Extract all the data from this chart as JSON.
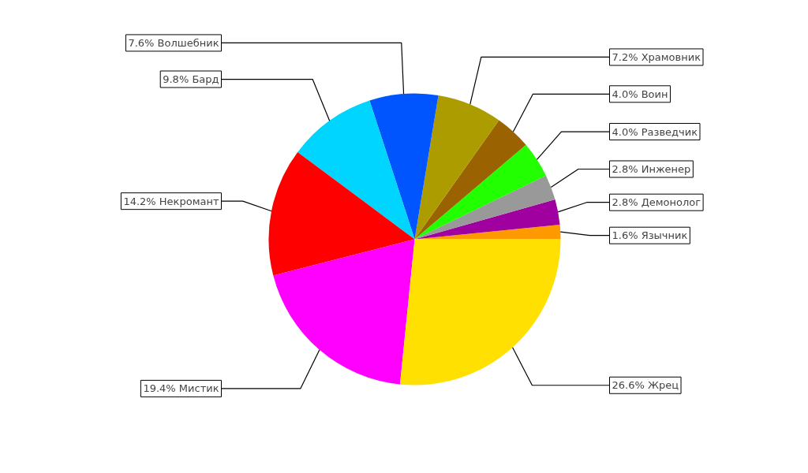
{
  "chart_data": {
    "type": "pie",
    "categories": [
      "Язычник",
      "Демонолог",
      "Инженер",
      "Разведчик",
      "Воин",
      "Храмовник",
      "Волшебник",
      "Бард",
      "Некромант",
      "Мистик",
      "Жрец"
    ],
    "values": [
      1.6,
      2.8,
      2.8,
      4.0,
      4.0,
      7.2,
      7.6,
      9.8,
      14.2,
      19.4,
      26.6
    ],
    "value_labels": [
      "1.6%",
      "2.8%",
      "2.8%",
      "4.0%",
      "4.0%",
      "7.2%",
      "7.6%",
      "9.8%",
      "14.2%",
      "19.4%",
      "26.6%"
    ],
    "colors": [
      "#ff9900",
      "#a000a0",
      "#999999",
      "#22ff00",
      "#9a6200",
      "#ad9c00",
      "#0055ff",
      "#00d5ff",
      "#ff0000",
      "#ff00ff",
      "#ffe000"
    ],
    "legend": false
  }
}
